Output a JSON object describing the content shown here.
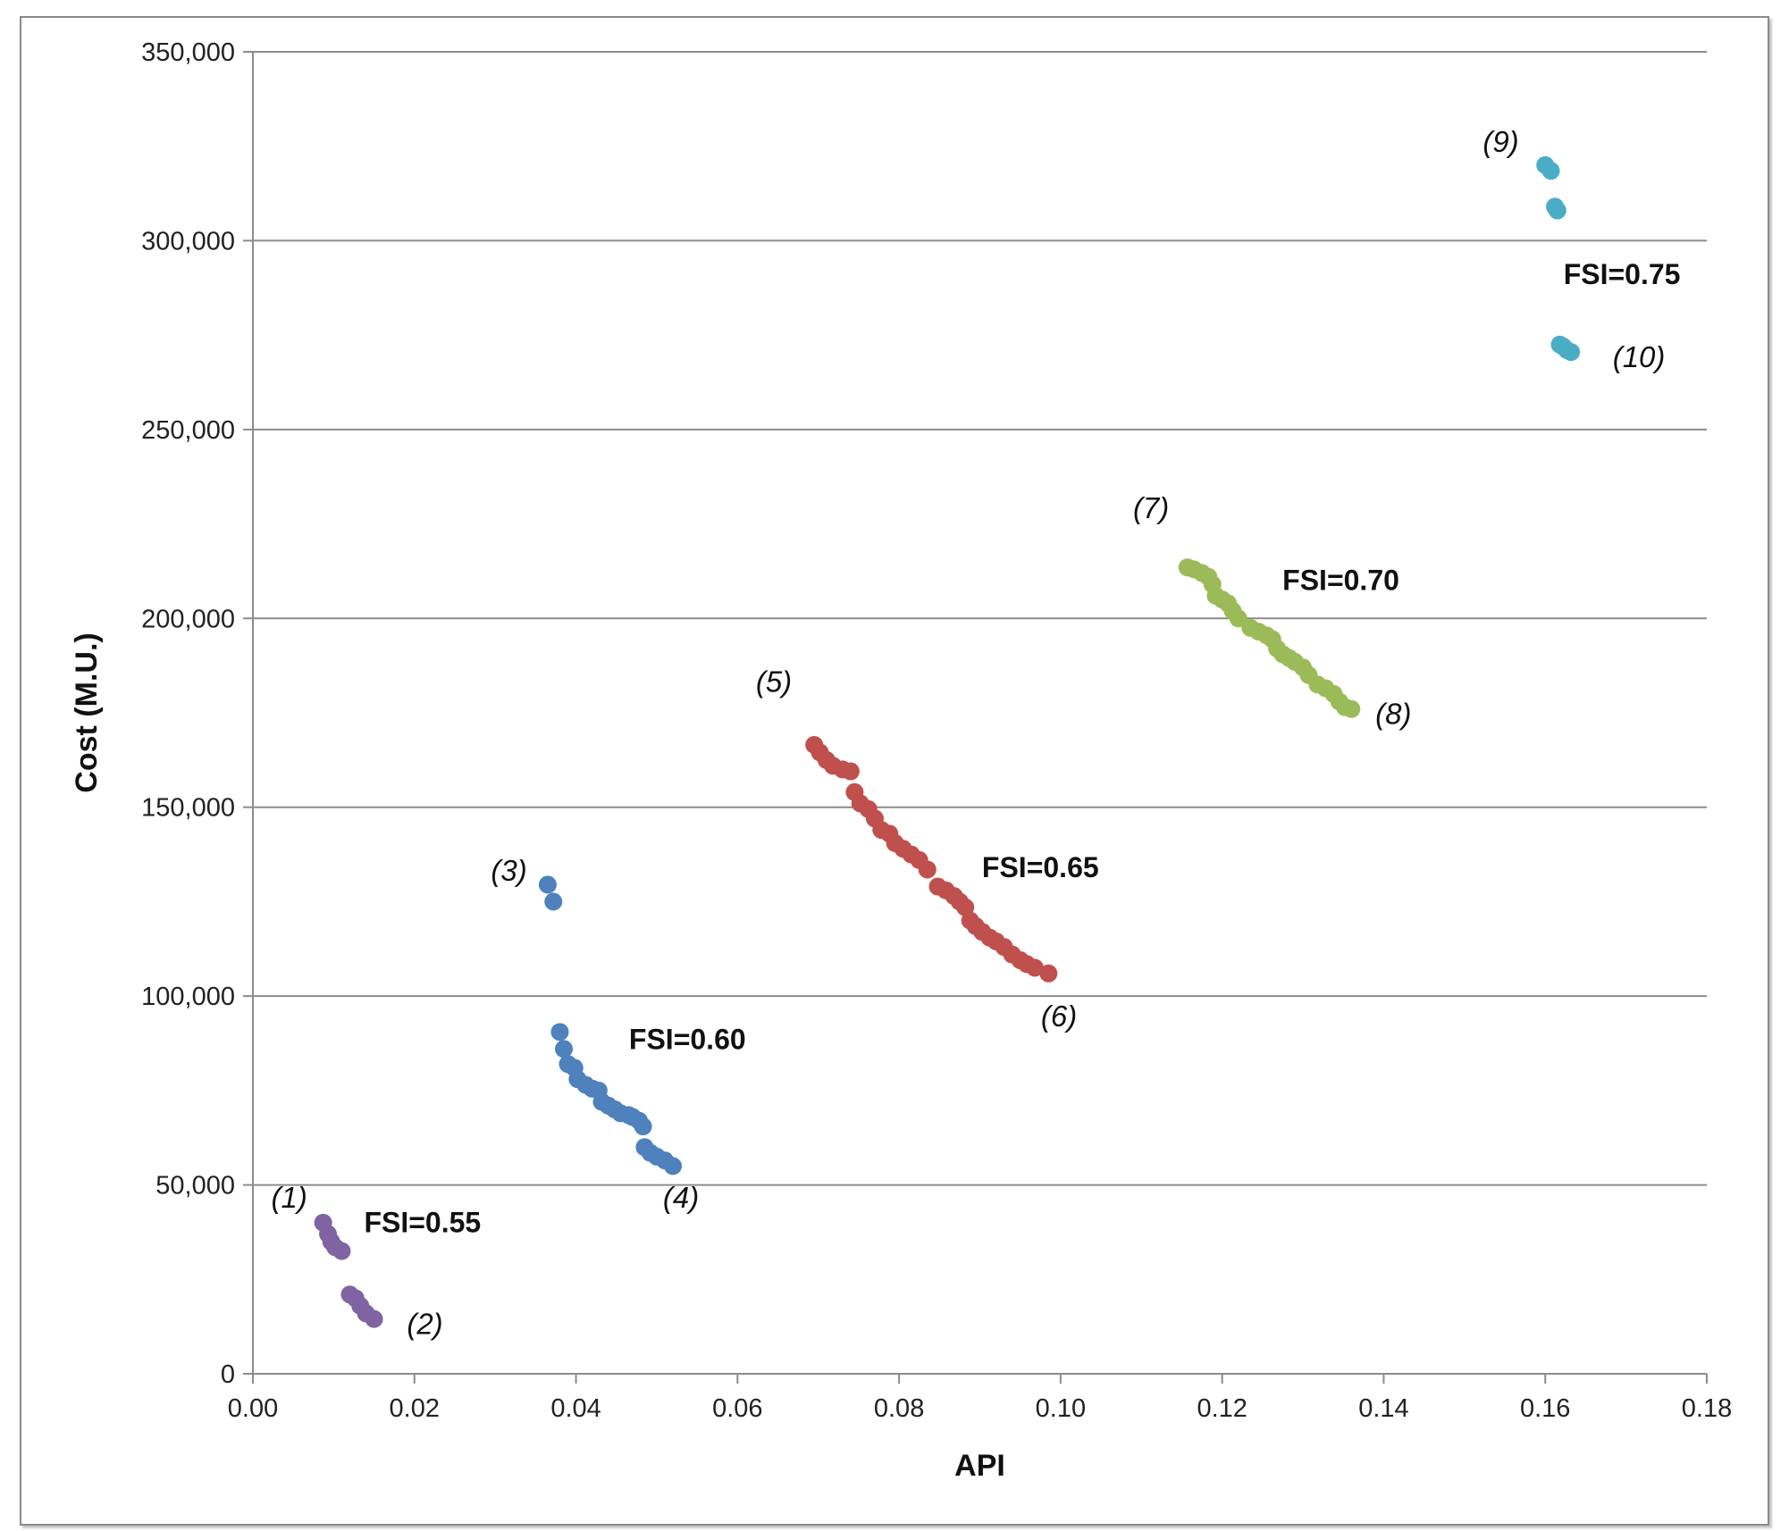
{
  "chart_data": {
    "type": "scatter",
    "title": "",
    "xlabel": "API",
    "ylabel": "Cost (M.U.)",
    "xlim": [
      0,
      0.18
    ],
    "ylim": [
      0,
      350000
    ],
    "xticks": [
      0,
      0.02,
      0.04,
      0.06,
      0.08,
      0.1,
      0.12,
      0.14,
      0.16,
      0.18
    ],
    "xtick_labels": [
      "0.00",
      "0.02",
      "0.04",
      "0.06",
      "0.08",
      "0.10",
      "0.12",
      "0.14",
      "0.16",
      "0.18"
    ],
    "yticks": [
      0,
      50000,
      100000,
      150000,
      200000,
      250000,
      300000,
      350000
    ],
    "ytick_labels": [
      "0",
      "50,000",
      "100,000",
      "150,000",
      "200,000",
      "250,000",
      "300,000",
      "350,000"
    ],
    "grid": "horizontal",
    "series": [
      {
        "name": "FSI=0.55",
        "color": "#8064A2",
        "points": [
          [
            0.0087,
            40000
          ],
          [
            0.0093,
            37000
          ],
          [
            0.0097,
            35000
          ],
          [
            0.0102,
            33500
          ],
          [
            0.011,
            32500
          ],
          [
            0.012,
            21000
          ],
          [
            0.0127,
            20000
          ],
          [
            0.0133,
            18000
          ],
          [
            0.014,
            16000
          ],
          [
            0.015,
            14500
          ]
        ]
      },
      {
        "name": "FSI=0.60",
        "color": "#4F81BD",
        "points": [
          [
            0.0365,
            129500
          ],
          [
            0.0372,
            125000
          ],
          [
            0.038,
            90500
          ],
          [
            0.0385,
            86000
          ],
          [
            0.039,
            82000
          ],
          [
            0.0398,
            81000
          ],
          [
            0.0402,
            78000
          ],
          [
            0.0412,
            76500
          ],
          [
            0.042,
            75500
          ],
          [
            0.0428,
            75000
          ],
          [
            0.0432,
            72000
          ],
          [
            0.044,
            71000
          ],
          [
            0.0448,
            70000
          ],
          [
            0.0455,
            69000
          ],
          [
            0.0465,
            68500
          ],
          [
            0.047,
            68000
          ],
          [
            0.0478,
            67000
          ],
          [
            0.0483,
            65500
          ],
          [
            0.0485,
            60000
          ],
          [
            0.0492,
            58500
          ],
          [
            0.05,
            57500
          ],
          [
            0.051,
            56500
          ],
          [
            0.052,
            55000
          ]
        ]
      },
      {
        "name": "FSI=0.65",
        "color": "#C0504D",
        "points": [
          [
            0.0695,
            166500
          ],
          [
            0.0702,
            164500
          ],
          [
            0.071,
            162500
          ],
          [
            0.0718,
            161000
          ],
          [
            0.073,
            160000
          ],
          [
            0.074,
            159500
          ],
          [
            0.0745,
            154000
          ],
          [
            0.0752,
            151000
          ],
          [
            0.0762,
            149500
          ],
          [
            0.077,
            147000
          ],
          [
            0.0778,
            144000
          ],
          [
            0.0788,
            143000
          ],
          [
            0.0795,
            140500
          ],
          [
            0.0805,
            139000
          ],
          [
            0.0815,
            137500
          ],
          [
            0.0825,
            136000
          ],
          [
            0.0835,
            133500
          ],
          [
            0.0848,
            129000
          ],
          [
            0.0858,
            128000
          ],
          [
            0.0868,
            126500
          ],
          [
            0.0875,
            125000
          ],
          [
            0.0882,
            123500
          ],
          [
            0.0888,
            120000
          ],
          [
            0.0895,
            118500
          ],
          [
            0.0903,
            117000
          ],
          [
            0.0912,
            115500
          ],
          [
            0.092,
            114500
          ],
          [
            0.093,
            113000
          ],
          [
            0.094,
            111000
          ],
          [
            0.095,
            109500
          ],
          [
            0.0958,
            108500
          ],
          [
            0.0968,
            107500
          ],
          [
            0.0985,
            106000
          ]
        ]
      },
      {
        "name": "FSI=0.70",
        "color": "#9BBB59",
        "points": [
          [
            0.1157,
            213500
          ],
          [
            0.1165,
            213000
          ],
          [
            0.1175,
            212000
          ],
          [
            0.1183,
            211000
          ],
          [
            0.1188,
            209000
          ],
          [
            0.1192,
            206000
          ],
          [
            0.12,
            205000
          ],
          [
            0.1207,
            204000
          ],
          [
            0.1213,
            202000
          ],
          [
            0.122,
            200000
          ],
          [
            0.1235,
            197500
          ],
          [
            0.1245,
            196500
          ],
          [
            0.1255,
            195500
          ],
          [
            0.1262,
            194500
          ],
          [
            0.1268,
            192000
          ],
          [
            0.1275,
            190500
          ],
          [
            0.1283,
            189500
          ],
          [
            0.129,
            188500
          ],
          [
            0.13,
            187000
          ],
          [
            0.1307,
            185000
          ],
          [
            0.1318,
            182500
          ],
          [
            0.1328,
            181500
          ],
          [
            0.1338,
            180000
          ],
          [
            0.1345,
            178000
          ],
          [
            0.1352,
            176500
          ],
          [
            0.136,
            176000
          ]
        ]
      },
      {
        "name": "FSI=0.75",
        "color": "#4BACC6",
        "points": [
          [
            0.16,
            320000
          ],
          [
            0.1607,
            318500
          ],
          [
            0.1612,
            309000
          ],
          [
            0.1615,
            308000
          ],
          [
            0.1618,
            272500
          ],
          [
            0.1622,
            272000
          ],
          [
            0.1627,
            271000
          ],
          [
            0.1632,
            270500
          ]
        ]
      }
    ],
    "annotations": [
      {
        "text": "(1)",
        "x": 0.0045,
        "y": 44000,
        "style": "italic"
      },
      {
        "text": "(2)",
        "x": 0.0213,
        "y": 10500,
        "style": "italic"
      },
      {
        "text": "(3)",
        "x": 0.0317,
        "y": 130500,
        "style": "italic"
      },
      {
        "text": "(4)",
        "x": 0.053,
        "y": 44000,
        "style": "italic"
      },
      {
        "text": "(5)",
        "x": 0.0645,
        "y": 180500,
        "style": "italic"
      },
      {
        "text": "(6)",
        "x": 0.0998,
        "y": 92000,
        "style": "italic"
      },
      {
        "text": "(7)",
        "x": 0.1112,
        "y": 226500,
        "style": "italic"
      },
      {
        "text": "(8)",
        "x": 0.1412,
        "y": 172000,
        "style": "italic"
      },
      {
        "text": "(9)",
        "x": 0.1545,
        "y": 323500,
        "style": "italic"
      },
      {
        "text": "(10)",
        "x": 0.1716,
        "y": 266500,
        "style": "italic"
      },
      {
        "text": "FSI=0.55",
        "x": 0.021,
        "y": 37500,
        "style": "bold"
      },
      {
        "text": "FSI=0.60",
        "x": 0.0538,
        "y": 86000,
        "style": "bold"
      },
      {
        "text": "FSI=0.65",
        "x": 0.0975,
        "y": 131500,
        "style": "bold"
      },
      {
        "text": "FSI=0.70",
        "x": 0.1347,
        "y": 207500,
        "style": "bold"
      },
      {
        "text": "FSI=0.75",
        "x": 0.1695,
        "y": 288500,
        "style": "bold"
      }
    ]
  }
}
